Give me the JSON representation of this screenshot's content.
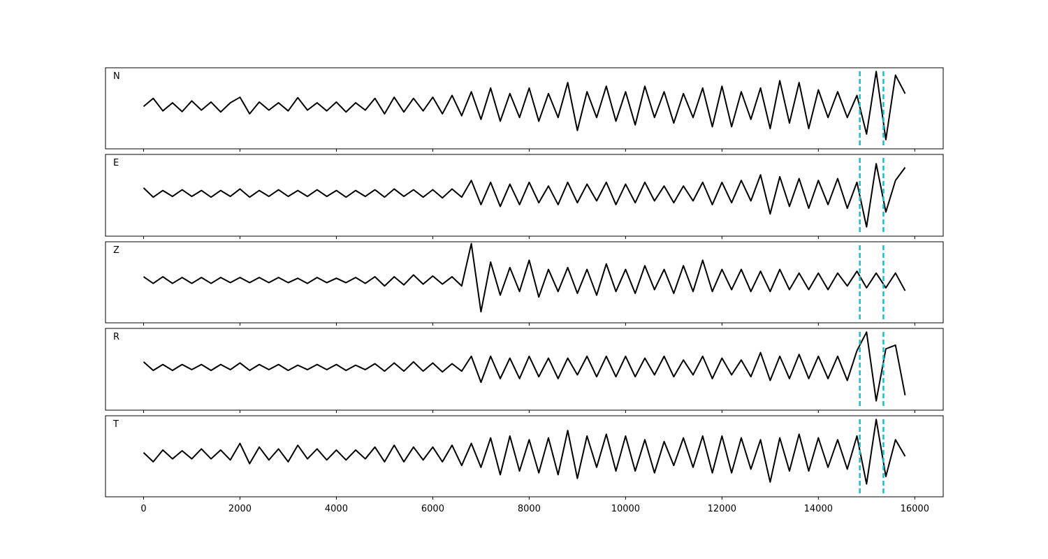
{
  "chart_data": {
    "type": "line",
    "x": [
      0,
      200,
      400,
      600,
      800,
      1000,
      1200,
      1400,
      1600,
      1800,
      2000,
      2200,
      2400,
      2600,
      2800,
      3000,
      3200,
      3400,
      3600,
      3800,
      4000,
      4200,
      4400,
      4600,
      4800,
      5000,
      5200,
      5400,
      5600,
      5800,
      6000,
      6200,
      6400,
      6600,
      6800,
      7000,
      7200,
      7400,
      7600,
      7800,
      8000,
      8200,
      8400,
      8600,
      8800,
      9000,
      9200,
      9400,
      9600,
      9800,
      10000,
      10200,
      10400,
      10600,
      10800,
      11000,
      11200,
      11400,
      11600,
      11800,
      12000,
      12200,
      12400,
      12600,
      12800,
      13000,
      13200,
      13400,
      13600,
      13800,
      14000,
      14200,
      14400,
      14600,
      14800,
      15000,
      15200,
      15400,
      15600,
      15800
    ],
    "xlim": [
      -790,
      16590
    ],
    "xticks": [
      0,
      2000,
      4000,
      6000,
      8000,
      10000,
      12000,
      14000,
      16000
    ],
    "ylim": [
      -1.15,
      1.05
    ],
    "vlines": {
      "values": [
        14860,
        15350
      ],
      "color": "#17becf"
    },
    "series": [
      {
        "name": "N",
        "color": "#000000",
        "values": [
          0,
          0.22,
          -0.12,
          0.1,
          -0.14,
          0.15,
          -0.1,
          0.12,
          -0.15,
          0.1,
          0.25,
          -0.2,
          0.12,
          -0.1,
          0.1,
          -0.12,
          0.24,
          -0.1,
          0.1,
          -0.12,
          0.12,
          -0.15,
          0.1,
          -0.1,
          0.22,
          -0.2,
          0.25,
          -0.15,
          0.22,
          -0.12,
          0.25,
          -0.2,
          0.3,
          -0.25,
          0.4,
          -0.35,
          0.5,
          -0.4,
          0.35,
          -0.3,
          0.5,
          -0.4,
          0.35,
          -0.3,
          0.65,
          -0.65,
          0.4,
          -0.3,
          0.55,
          -0.4,
          0.4,
          -0.5,
          0.55,
          -0.3,
          0.4,
          -0.45,
          0.35,
          -0.3,
          0.5,
          -0.55,
          0.55,
          -0.55,
          0.4,
          -0.35,
          0.5,
          -0.6,
          0.7,
          -0.45,
          0.65,
          -0.6,
          0.45,
          -0.3,
          0.4,
          -0.3,
          0.3,
          -0.75,
          0.95,
          -0.9,
          0.85,
          0.35
        ]
      },
      {
        "name": "E",
        "color": "#000000",
        "values": [
          0.15,
          -0.1,
          0.08,
          -0.08,
          0.1,
          -0.08,
          0.08,
          -0.1,
          0.08,
          -0.08,
          0.12,
          -0.1,
          0.08,
          -0.08,
          0.1,
          -0.08,
          0.08,
          -0.08,
          0.1,
          -0.08,
          0.08,
          -0.1,
          0.08,
          -0.08,
          0.1,
          -0.1,
          0.12,
          -0.08,
          0.1,
          -0.1,
          0.1,
          -0.12,
          0.12,
          -0.1,
          0.35,
          -0.3,
          0.3,
          -0.35,
          0.25,
          -0.3,
          0.3,
          -0.25,
          0.2,
          -0.3,
          0.3,
          -0.25,
          0.25,
          -0.2,
          0.3,
          -0.3,
          0.25,
          -0.25,
          0.3,
          -0.2,
          0.2,
          -0.25,
          0.2,
          -0.2,
          0.3,
          -0.3,
          0.3,
          -0.25,
          0.35,
          -0.2,
          0.5,
          -0.55,
          0.45,
          -0.35,
          0.4,
          -0.4,
          0.35,
          -0.3,
          0.4,
          -0.4,
          0.3,
          -0.9,
          0.8,
          -0.5,
          0.35,
          0.7
        ]
      },
      {
        "name": "Z",
        "color": "#000000",
        "values": [
          0.1,
          -0.08,
          0.1,
          -0.08,
          0.08,
          -0.08,
          0.08,
          -0.08,
          0.08,
          -0.06,
          0.08,
          -0.06,
          0.08,
          -0.06,
          0.08,
          -0.06,
          0.06,
          -0.08,
          0.08,
          -0.06,
          0.06,
          -0.06,
          0.08,
          -0.08,
          0.1,
          -0.15,
          0.1,
          -0.12,
          0.15,
          -0.1,
          0.12,
          -0.1,
          0.1,
          -0.15,
          1.0,
          -0.85,
          0.5,
          -0.4,
          0.35,
          -0.3,
          0.55,
          -0.45,
          0.3,
          -0.3,
          0.35,
          -0.35,
          0.3,
          -0.4,
          0.45,
          -0.3,
          0.3,
          -0.35,
          0.4,
          -0.25,
          0.3,
          -0.35,
          0.4,
          -0.3,
          0.55,
          -0.3,
          0.3,
          -0.25,
          0.3,
          -0.3,
          0.25,
          -0.3,
          0.3,
          -0.25,
          0.2,
          -0.25,
          0.2,
          -0.25,
          0.2,
          -0.15,
          0.25,
          -0.2,
          0.2,
          -0.2,
          0.2,
          -0.28
        ]
      },
      {
        "name": "R",
        "color": "#000000",
        "values": [
          0.15,
          -0.08,
          0.08,
          -0.08,
          0.08,
          -0.06,
          0.08,
          -0.08,
          0.08,
          -0.06,
          0.12,
          -0.08,
          0.08,
          -0.06,
          0.08,
          -0.08,
          0.06,
          -0.06,
          0.08,
          -0.06,
          0.08,
          -0.08,
          0.06,
          -0.06,
          0.1,
          -0.1,
          0.12,
          -0.1,
          0.15,
          -0.1,
          0.12,
          -0.12,
          0.1,
          -0.1,
          0.3,
          -0.4,
          0.3,
          -0.3,
          0.25,
          -0.3,
          0.3,
          -0.25,
          0.25,
          -0.3,
          0.25,
          -0.2,
          0.3,
          -0.25,
          0.3,
          -0.25,
          0.3,
          -0.25,
          0.25,
          -0.2,
          0.3,
          -0.25,
          0.2,
          -0.2,
          0.3,
          -0.3,
          0.25,
          -0.2,
          0.2,
          -0.25,
          0.4,
          -0.35,
          0.3,
          -0.3,
          0.35,
          -0.3,
          0.3,
          -0.3,
          0.3,
          -0.35,
          0.45,
          0.95,
          -0.9,
          0.5,
          0.6,
          -0.75
        ]
      },
      {
        "name": "T",
        "color": "#000000",
        "values": [
          0.05,
          -0.2,
          0.12,
          -0.12,
          0.1,
          -0.12,
          0.15,
          -0.12,
          0.12,
          -0.15,
          0.3,
          -0.25,
          0.2,
          -0.15,
          0.15,
          -0.2,
          0.25,
          -0.12,
          0.15,
          -0.15,
          0.12,
          -0.15,
          0.12,
          -0.12,
          0.2,
          -0.2,
          0.25,
          -0.2,
          0.2,
          -0.15,
          0.2,
          -0.2,
          0.25,
          -0.3,
          0.3,
          -0.35,
          0.45,
          -0.55,
          0.5,
          -0.45,
          0.4,
          -0.5,
          0.45,
          -0.55,
          0.65,
          -0.65,
          0.5,
          -0.35,
          0.55,
          -0.45,
          0.5,
          -0.45,
          0.4,
          -0.5,
          0.35,
          -0.3,
          0.45,
          -0.35,
          0.5,
          -0.5,
          0.5,
          -0.5,
          0.45,
          -0.4,
          0.4,
          -0.75,
          0.45,
          -0.45,
          0.55,
          -0.45,
          0.45,
          -0.35,
          0.4,
          -0.4,
          0.5,
          -0.8,
          0.95,
          -0.6,
          0.4,
          -0.05
        ]
      }
    ]
  }
}
